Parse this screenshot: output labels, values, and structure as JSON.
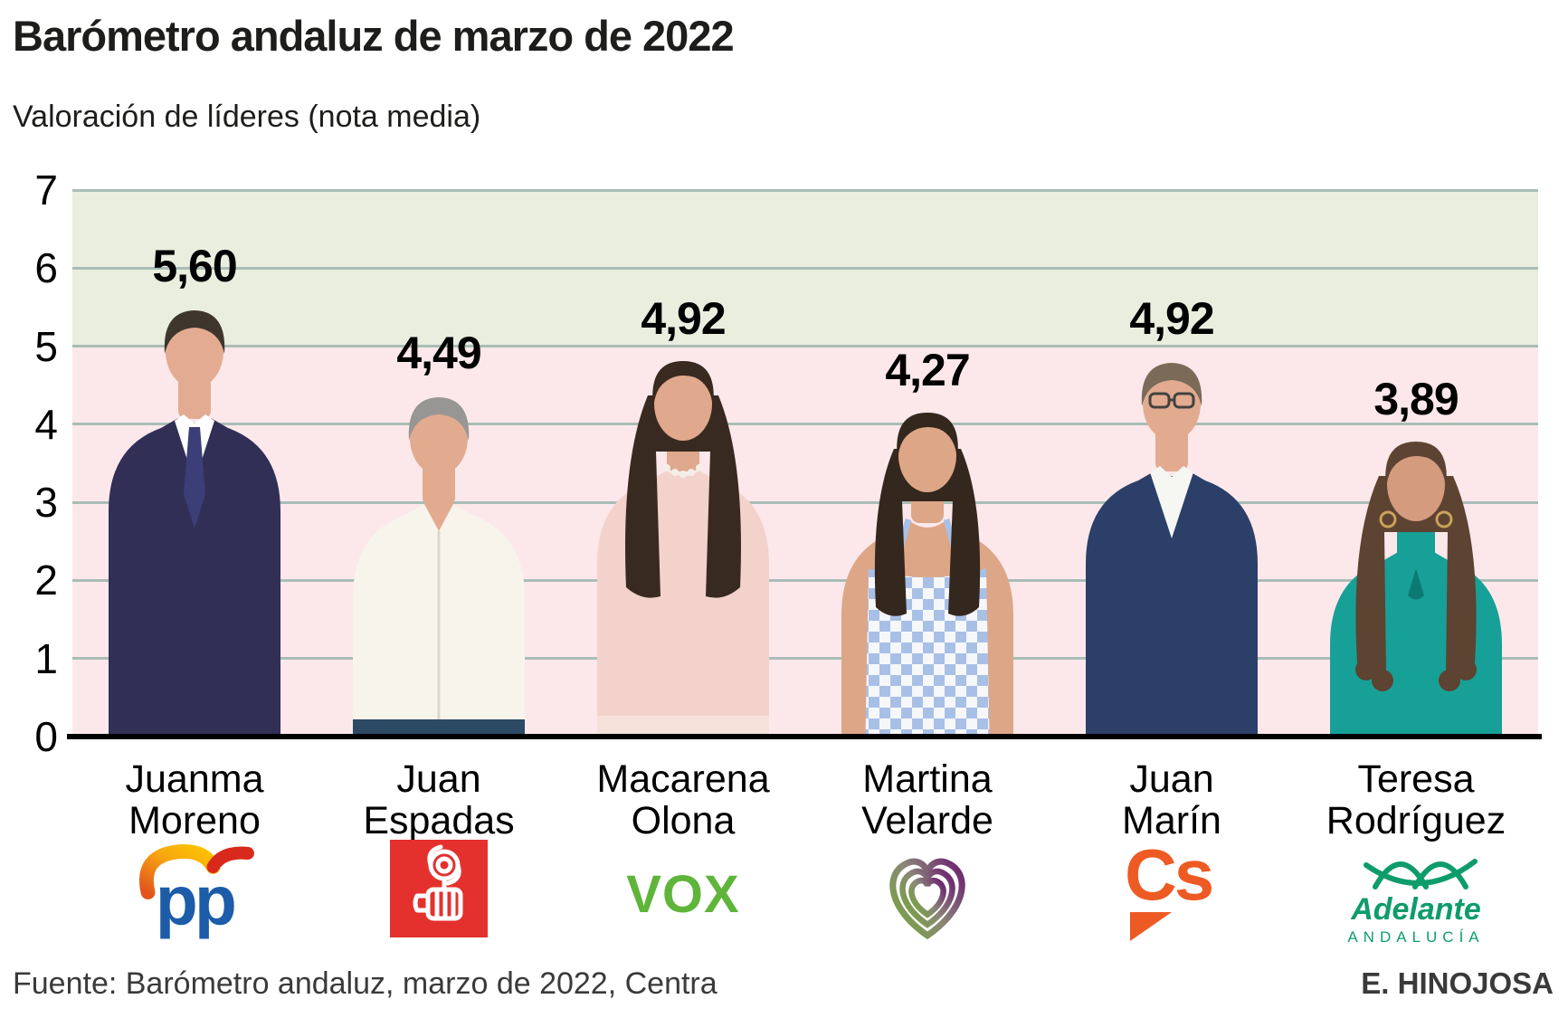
{
  "header": {
    "title": "Barómetro andaluz de marzo de 2022",
    "subtitle": "Valoración de líderes (nota media)"
  },
  "footer": {
    "source": "Fuente: Barómetro andaluz, marzo de 2022, Centra",
    "credit": "E. HINOJOSA"
  },
  "chart_data": {
    "type": "bar",
    "title": "Barómetro andaluz de marzo de 2022",
    "subtitle": "Valoración de líderes (nota media)",
    "xlabel": "",
    "ylabel": "",
    "ylim": [
      0,
      7
    ],
    "yticks": [
      0,
      1,
      2,
      3,
      4,
      5,
      6,
      7
    ],
    "grid": true,
    "band_split_value": 5,
    "colors": {
      "band_above": "#e9eedf",
      "band_below": "#fce8eb",
      "gridline": "#a9bdb6",
      "baseline": "#000000",
      "text": "#000000"
    },
    "categories": [
      "Juanma Moreno",
      "Juan Espadas",
      "Macarena Olona",
      "Martina Velarde",
      "Juan Marín",
      "Teresa Rodríguez"
    ],
    "values": [
      5.6,
      4.49,
      4.92,
      4.27,
      4.92,
      3.89
    ],
    "value_labels": [
      "5,60",
      "4,49",
      "4,92",
      "4,27",
      "4,92",
      "3,89"
    ],
    "people": [
      {
        "name_line1": "Juanma",
        "name_line2": "Moreno",
        "score": 5.6,
        "score_label": "5,60",
        "party": "pp",
        "figure": {
          "type": "suit-tie",
          "skin": "#e3ac92",
          "hair": "#3e362c",
          "top": "#312f55",
          "bottom": "#312f55",
          "accent": "#3c3e78"
        }
      },
      {
        "name_line1": "Juan",
        "name_line2": "Espadas",
        "score": 4.49,
        "score_label": "4,49",
        "party": "psoe",
        "figure": {
          "type": "open-shirt",
          "skin": "#e2ab90",
          "hair": "#989694",
          "top": "#f7f4ec",
          "bottom": "#2c4a63",
          "accent": "#ddd8cc"
        }
      },
      {
        "name_line1": "Macarena",
        "name_line2": "Olona",
        "score": 4.92,
        "score_label": "4,92",
        "party": "vox",
        "figure": {
          "type": "long-hair-blouse",
          "skin": "#e0a88c",
          "hair": "#392a21",
          "top": "#f3d2cc",
          "bottom": "#f6e0da",
          "accent": "#f3d2cc"
        }
      },
      {
        "name_line1": "Martina",
        "name_line2": "Velarde",
        "score": 4.27,
        "score_label": "4,27",
        "party": "podemos",
        "figure": {
          "type": "gingham",
          "skin": "#dda687",
          "hair": "#33271e",
          "top": "#a9c0e6",
          "bottom": "#a9c0e6",
          "accent": "#a9c0e6"
        }
      },
      {
        "name_line1": "Juan",
        "name_line2": "Marín",
        "score": 4.92,
        "score_label": "4,92",
        "party": "cs",
        "figure": {
          "type": "blazer-glasses",
          "skin": "#e2ab90",
          "hair": "#7a6a57",
          "top": "#2c3f68",
          "bottom": "#2c3f68",
          "accent": "#f6f6f3"
        }
      },
      {
        "name_line1": "Teresa",
        "name_line2": "Rodríguez",
        "score": 3.89,
        "score_label": "3,89",
        "party": "adelante",
        "figure": {
          "type": "curly-highneck",
          "skin": "#d49b7e",
          "hair": "#5d4331",
          "top": "#17a097",
          "bottom": "#17a097",
          "accent": "#0c7a73"
        }
      }
    ],
    "parties": {
      "pp": {
        "name": "PP",
        "wordmark": "pp",
        "blue": "#1d5ca9",
        "gradient_start": "#e2541c",
        "gradient_mid": "#f7a511",
        "gradient_end": "#fdc500",
        "red": "#d9291c"
      },
      "psoe": {
        "name": "PSOE",
        "red": "#e4312e"
      },
      "vox": {
        "name": "VOX",
        "wordmark": "VOX",
        "green": "#5fb53a"
      },
      "podemos": {
        "name": "Podemos",
        "green": "#76a63e",
        "purple": "#6f2a70"
      },
      "cs": {
        "name": "Cs",
        "wordmark": "Cs",
        "orange": "#ee5a24"
      },
      "adelante": {
        "name": "Adelante Andalucía",
        "wordmark_line1": "Adelante",
        "wordmark_line2": "ANDALUCÍA",
        "green": "#0e9c6b"
      }
    }
  }
}
